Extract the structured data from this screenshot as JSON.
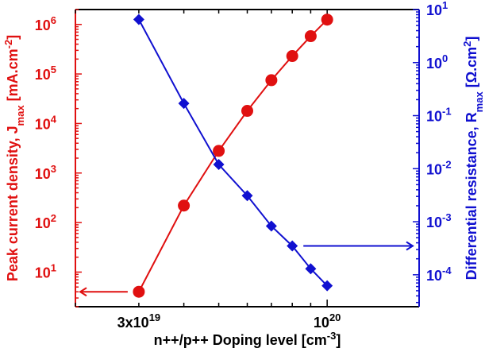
{
  "chart_data": {
    "type": "line",
    "x_axis": {
      "label_parts": [
        "n++/p++ Doping level [cm",
        "-3",
        "]"
      ],
      "scale": "log",
      "range": [
        2e+19,
        1.8e+20
      ],
      "tick_labels": [
        {
          "value": 3e+19,
          "base": "3x10",
          "exp": "19"
        },
        {
          "value": 1e+20,
          "base": "10",
          "exp": "20"
        }
      ]
    },
    "y_left_axis": {
      "label_parts": [
        "Peak current density, J",
        "max",
        " [mA.cm",
        "-2",
        "]"
      ],
      "scale": "log",
      "range": [
        2.0,
        2000000.0
      ],
      "color": "#e01010",
      "tick_labels": [
        {
          "value": 10,
          "base": "10",
          "exp": "1"
        },
        {
          "value": 100,
          "base": "10",
          "exp": "2"
        },
        {
          "value": 1000,
          "base": "10",
          "exp": "3"
        },
        {
          "value": 10000,
          "base": "10",
          "exp": "4"
        },
        {
          "value": 100000,
          "base": "10",
          "exp": "5"
        },
        {
          "value": 1000000,
          "base": "10",
          "exp": "6"
        }
      ]
    },
    "y_right_axis": {
      "label_parts": [
        "Differential resistance, R",
        "max",
        " [Ω.cm",
        "2",
        "]"
      ],
      "scale": "log",
      "range": [
        2.5e-05,
        10
      ],
      "color": "#1010d0",
      "tick_labels": [
        {
          "value": 0.0001,
          "base": "10",
          "exp": "-4"
        },
        {
          "value": 0.001,
          "base": "10",
          "exp": "-3"
        },
        {
          "value": 0.01,
          "base": "10",
          "exp": "-2"
        },
        {
          "value": 0.1,
          "base": "10",
          "exp": "-1"
        },
        {
          "value": 1,
          "base": "10",
          "exp": "0"
        },
        {
          "value": 10,
          "base": "10",
          "exp": "1"
        }
      ]
    },
    "series": [
      {
        "axis": "left",
        "marker": "circle",
        "color": "#e01010",
        "x": [
          3e+19,
          4e+19,
          5e+19,
          6e+19,
          7e+19,
          8e+19,
          9e+19,
          1e+20
        ],
        "y": [
          4.0,
          220,
          2800,
          18000,
          75000,
          230000,
          580000,
          1250000
        ]
      },
      {
        "axis": "right",
        "marker": "diamond",
        "color": "#1010d0",
        "x": [
          3e+19,
          4e+19,
          5e+19,
          6e+19,
          7e+19,
          8e+19,
          9e+19,
          1e+20
        ],
        "y": [
          6.5,
          0.17,
          0.012,
          0.0031,
          0.00083,
          0.00035,
          0.00013,
          6.2e-05
        ]
      }
    ],
    "annotations": [
      {
        "type": "arrow",
        "points_to": "left-axis",
        "color": "#e01010",
        "at_series": 0
      },
      {
        "type": "arrow",
        "points_to": "right-axis",
        "color": "#1010d0",
        "at_series": 1
      }
    ],
    "grid": false,
    "legend": "none"
  }
}
